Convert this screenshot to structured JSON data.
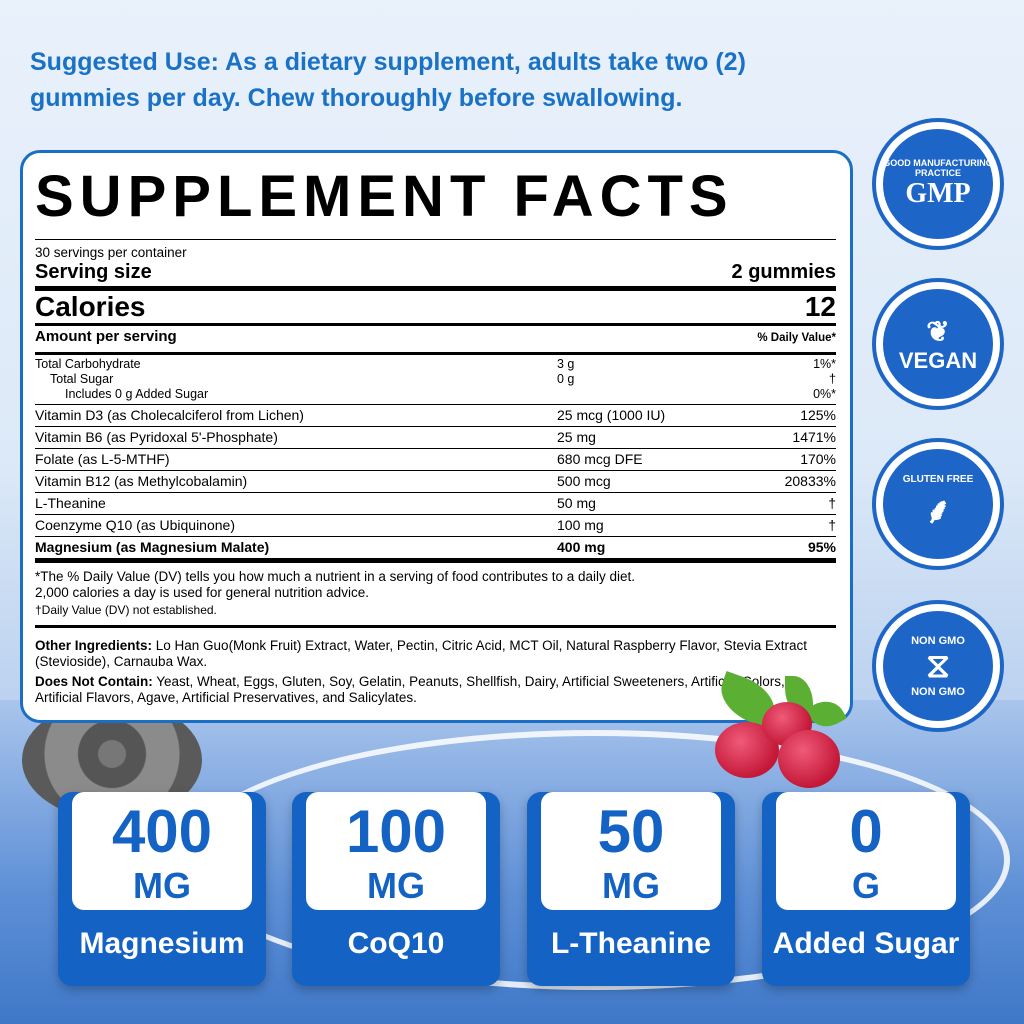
{
  "suggested_use": "Suggested Use: As a dietary supplement, adults take two (2) gummies per day. Chew thoroughly before swallowing.",
  "facts": {
    "title": "SUPPLEMENT FACTS",
    "servings": "30 servings per container",
    "serving_size_label": "Serving size",
    "serving_size": "2 gummies",
    "calories_label": "Calories",
    "calories": "12",
    "amount_label": "Amount per serving",
    "dv_label": "% Daily Value*",
    "carbs": [
      {
        "name": "Total Carbohydrate",
        "amount": "3 g",
        "dv": "1%*"
      },
      {
        "name": "Total Sugar",
        "amount": "0 g",
        "dv": "†"
      },
      {
        "name": "Includes 0 g Added Sugar",
        "amount": "",
        "dv": "0%*"
      }
    ],
    "rows": [
      {
        "name": "Vitamin D3 (as Cholecalciferol from Lichen)",
        "amount": "25 mcg (1000 IU)",
        "dv": "125%"
      },
      {
        "name": "Vitamin B6 (as Pyridoxal 5'-Phosphate)",
        "amount": "25 mg",
        "dv": "1471%"
      },
      {
        "name": "Folate (as L-5-MTHF)",
        "amount": "680 mcg DFE",
        "dv": "170%"
      },
      {
        "name": "Vitamin B12 (as Methylcobalamin)",
        "amount": "500 mcg",
        "dv": "20833%"
      },
      {
        "name": "L-Theanine",
        "amount": "50 mg",
        "dv": "†"
      },
      {
        "name": "Coenzyme Q10 (as Ubiquinone)",
        "amount": "100 mg",
        "dv": "†"
      },
      {
        "name": "Magnesium (as Magnesium Malate)",
        "amount": "400 mg",
        "dv": "95%"
      }
    ],
    "footnote1": "*The % Daily Value (DV) tells you how much a nutrient in a serving of food contributes to a daily diet.",
    "footnote2": "2,000 calories a day is used for general nutrition advice.",
    "footnote3": "†Daily Value (DV) not established.",
    "other_label": "Other Ingredients:",
    "other": " Lo Han Guo(Monk Fruit) Extract, Water, Pectin, Citric Acid, MCT Oil, Natural Raspberry Flavor, Stevia Extract (Stevioside), Carnauba Wax.",
    "not_label": "Does Not Contain:",
    "not": " Yeast, Wheat, Eggs, Gluten, Soy, Gelatin, Peanuts, Shellfish, Dairy, Artificial Sweeteners, Artificial Colors, Artificial Flavors, Agave, Artificial Preservatives, and Salicylates."
  },
  "badges": [
    {
      "text": "GMP",
      "ring": "GOOD MANUFACTURING PRACTICE"
    },
    {
      "text": "VEGAN",
      "icon": "leaf-icon"
    },
    {
      "text": "GLUTEN FREE",
      "icon": "wheat-icon"
    },
    {
      "text": "NON GMO",
      "icon": "dna-icon"
    }
  ],
  "cards": [
    {
      "num": "400",
      "unit": "MG",
      "label": "Magnesium"
    },
    {
      "num": "100",
      "unit": "MG",
      "label": "CoQ10"
    },
    {
      "num": "50",
      "unit": "MG",
      "label": "L-Theanine"
    },
    {
      "num": "0",
      "unit": "G",
      "label": "Added Sugar"
    }
  ],
  "colors": {
    "brand": "#1462c4",
    "text_blue": "#1a72c6"
  }
}
